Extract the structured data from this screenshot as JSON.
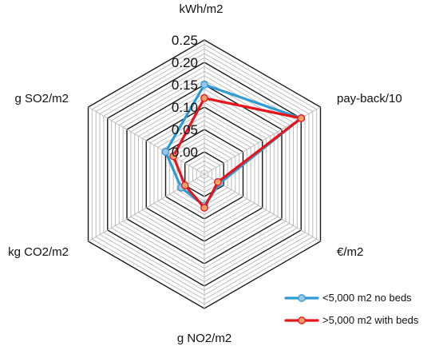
{
  "chart_data": {
    "type": "radar",
    "axes": [
      "kWh/m2",
      "pay-back/10",
      "€/m2",
      "g NO2/m2",
      "kg CO2/m2",
      "g SO2/m2"
    ],
    "ticks": [
      "0.00",
      "0.05",
      "0.10",
      "0.15",
      "0.20",
      "0.25"
    ],
    "rlim": [
      -0.05,
      0.25
    ],
    "minor_step": 0.01,
    "grid": true,
    "legend_position": "bottom-right",
    "series": [
      {
        "name": "<5,000 m2 no beds",
        "color": "#2e9ad6",
        "marker_fill": "#9bc6ea",
        "values": [
          0.15,
          0.2,
          -0.01,
          0.02,
          0.01,
          0.05
        ]
      },
      {
        "name": ">5,000 m2 with beds",
        "color": "#e8141b",
        "marker_fill": "#f4a06a",
        "values": [
          0.12,
          0.2,
          -0.015,
          0.025,
          0.0,
          0.03
        ]
      }
    ]
  }
}
